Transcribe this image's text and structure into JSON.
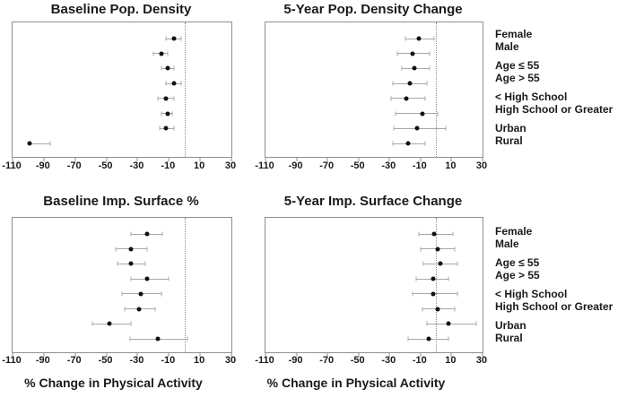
{
  "figure": {
    "xaxis_title": "% Change in Physical Activity",
    "categories": [
      "Female",
      "Male",
      "Age ≤ 55",
      "Age > 55",
      "< High School",
      "High School or Greater",
      "Urban",
      "Rural"
    ],
    "category_groups": [
      [
        "Female",
        "Male"
      ],
      [
        "Age ≤ 55",
        "Age > 55"
      ],
      [
        "< High School",
        "High School or Greater"
      ],
      [
        "Urban",
        "Rural"
      ]
    ]
  },
  "colors": {
    "point": "#111111",
    "whisker": "#a8a8a8",
    "box_border": "#8f8f8f",
    "refline": "#8f8f8f",
    "text": "#1a1a1a"
  },
  "chart_data": [
    {
      "type": "scatter",
      "variant": "forest-dot-whisker",
      "title": "Baseline Pop. Density",
      "xlabel": "",
      "categories": [
        "Female",
        "Male",
        "Age ≤ 55",
        "Age > 55",
        "< High School",
        "High School or Greater",
        "Urban",
        "Rural"
      ],
      "values": [
        -7,
        -15,
        -11,
        -7,
        -12,
        -11,
        -12,
        -99
      ],
      "ci_low": [
        -12,
        -20,
        -15,
        -12,
        -17,
        -15,
        -16,
        -99
      ],
      "ci_high": [
        -2,
        -11,
        -7,
        -2,
        -7,
        -8,
        -7,
        -86
      ],
      "xlim": [
        -110,
        30
      ],
      "xticks": [
        -110,
        -90,
        -70,
        -50,
        -30,
        -10,
        10,
        30
      ],
      "refline_x": 0,
      "grid": false,
      "legend": "none"
    },
    {
      "type": "scatter",
      "variant": "forest-dot-whisker",
      "title": "5-Year Pop. Density Change",
      "xlabel": "",
      "categories": [
        "Female",
        "Male",
        "Age ≤ 55",
        "Age > 55",
        "< High School",
        "High School or Greater",
        "Urban",
        "Rural"
      ],
      "values": [
        -11,
        -15,
        -14,
        -17,
        -19,
        -9,
        -12,
        -18
      ],
      "ci_low": [
        -20,
        -25,
        -22,
        -28,
        -29,
        -26,
        -27,
        -28
      ],
      "ci_high": [
        -1,
        -4,
        -4,
        -6,
        -7,
        1,
        6,
        -7
      ],
      "xlim": [
        -110,
        30
      ],
      "xticks": [
        -110,
        -90,
        -70,
        -50,
        -30,
        -10,
        10,
        30
      ],
      "refline_x": 0,
      "grid": false,
      "legend": "none"
    },
    {
      "type": "scatter",
      "variant": "forest-dot-whisker",
      "title": "Baseline Imp. Surface %",
      "xlabel": "% Change in Physical Activity",
      "categories": [
        "Female",
        "Male",
        "Age ≤ 55",
        "Age > 55",
        "< High School",
        "High School or Greater",
        "Urban",
        "Rural"
      ],
      "values": [
        -24,
        -34,
        -34,
        -24,
        -28,
        -29,
        -48,
        -17
      ],
      "ci_low": [
        -34,
        -44,
        -43,
        -34,
        -40,
        -38,
        -59,
        -35
      ],
      "ci_high": [
        -14,
        -24,
        -25,
        -10,
        -15,
        -19,
        -34,
        2
      ],
      "xlim": [
        -110,
        30
      ],
      "xticks": [
        -110,
        -90,
        -70,
        -50,
        -30,
        -10,
        10,
        30
      ],
      "refline_x": 0,
      "grid": false,
      "legend": "none"
    },
    {
      "type": "scatter",
      "variant": "forest-dot-whisker",
      "title": "5-Year Imp. Surface Change",
      "xlabel": "% Change in Physical Activity",
      "categories": [
        "Female",
        "Male",
        "Age ≤ 55",
        "Age > 55",
        "< High School",
        "High School or Greater",
        "Urban",
        "Rural"
      ],
      "values": [
        -1,
        1,
        3,
        -2,
        -2,
        1,
        8,
        -5
      ],
      "ci_low": [
        -11,
        -10,
        -8,
        -13,
        -15,
        -9,
        -6,
        -18
      ],
      "ci_high": [
        11,
        12,
        14,
        8,
        14,
        12,
        26,
        8
      ],
      "xlim": [
        -110,
        30
      ],
      "xticks": [
        -110,
        -90,
        -70,
        -50,
        -30,
        -10,
        10,
        30
      ],
      "refline_x": 0,
      "grid": false,
      "legend": "none"
    }
  ]
}
